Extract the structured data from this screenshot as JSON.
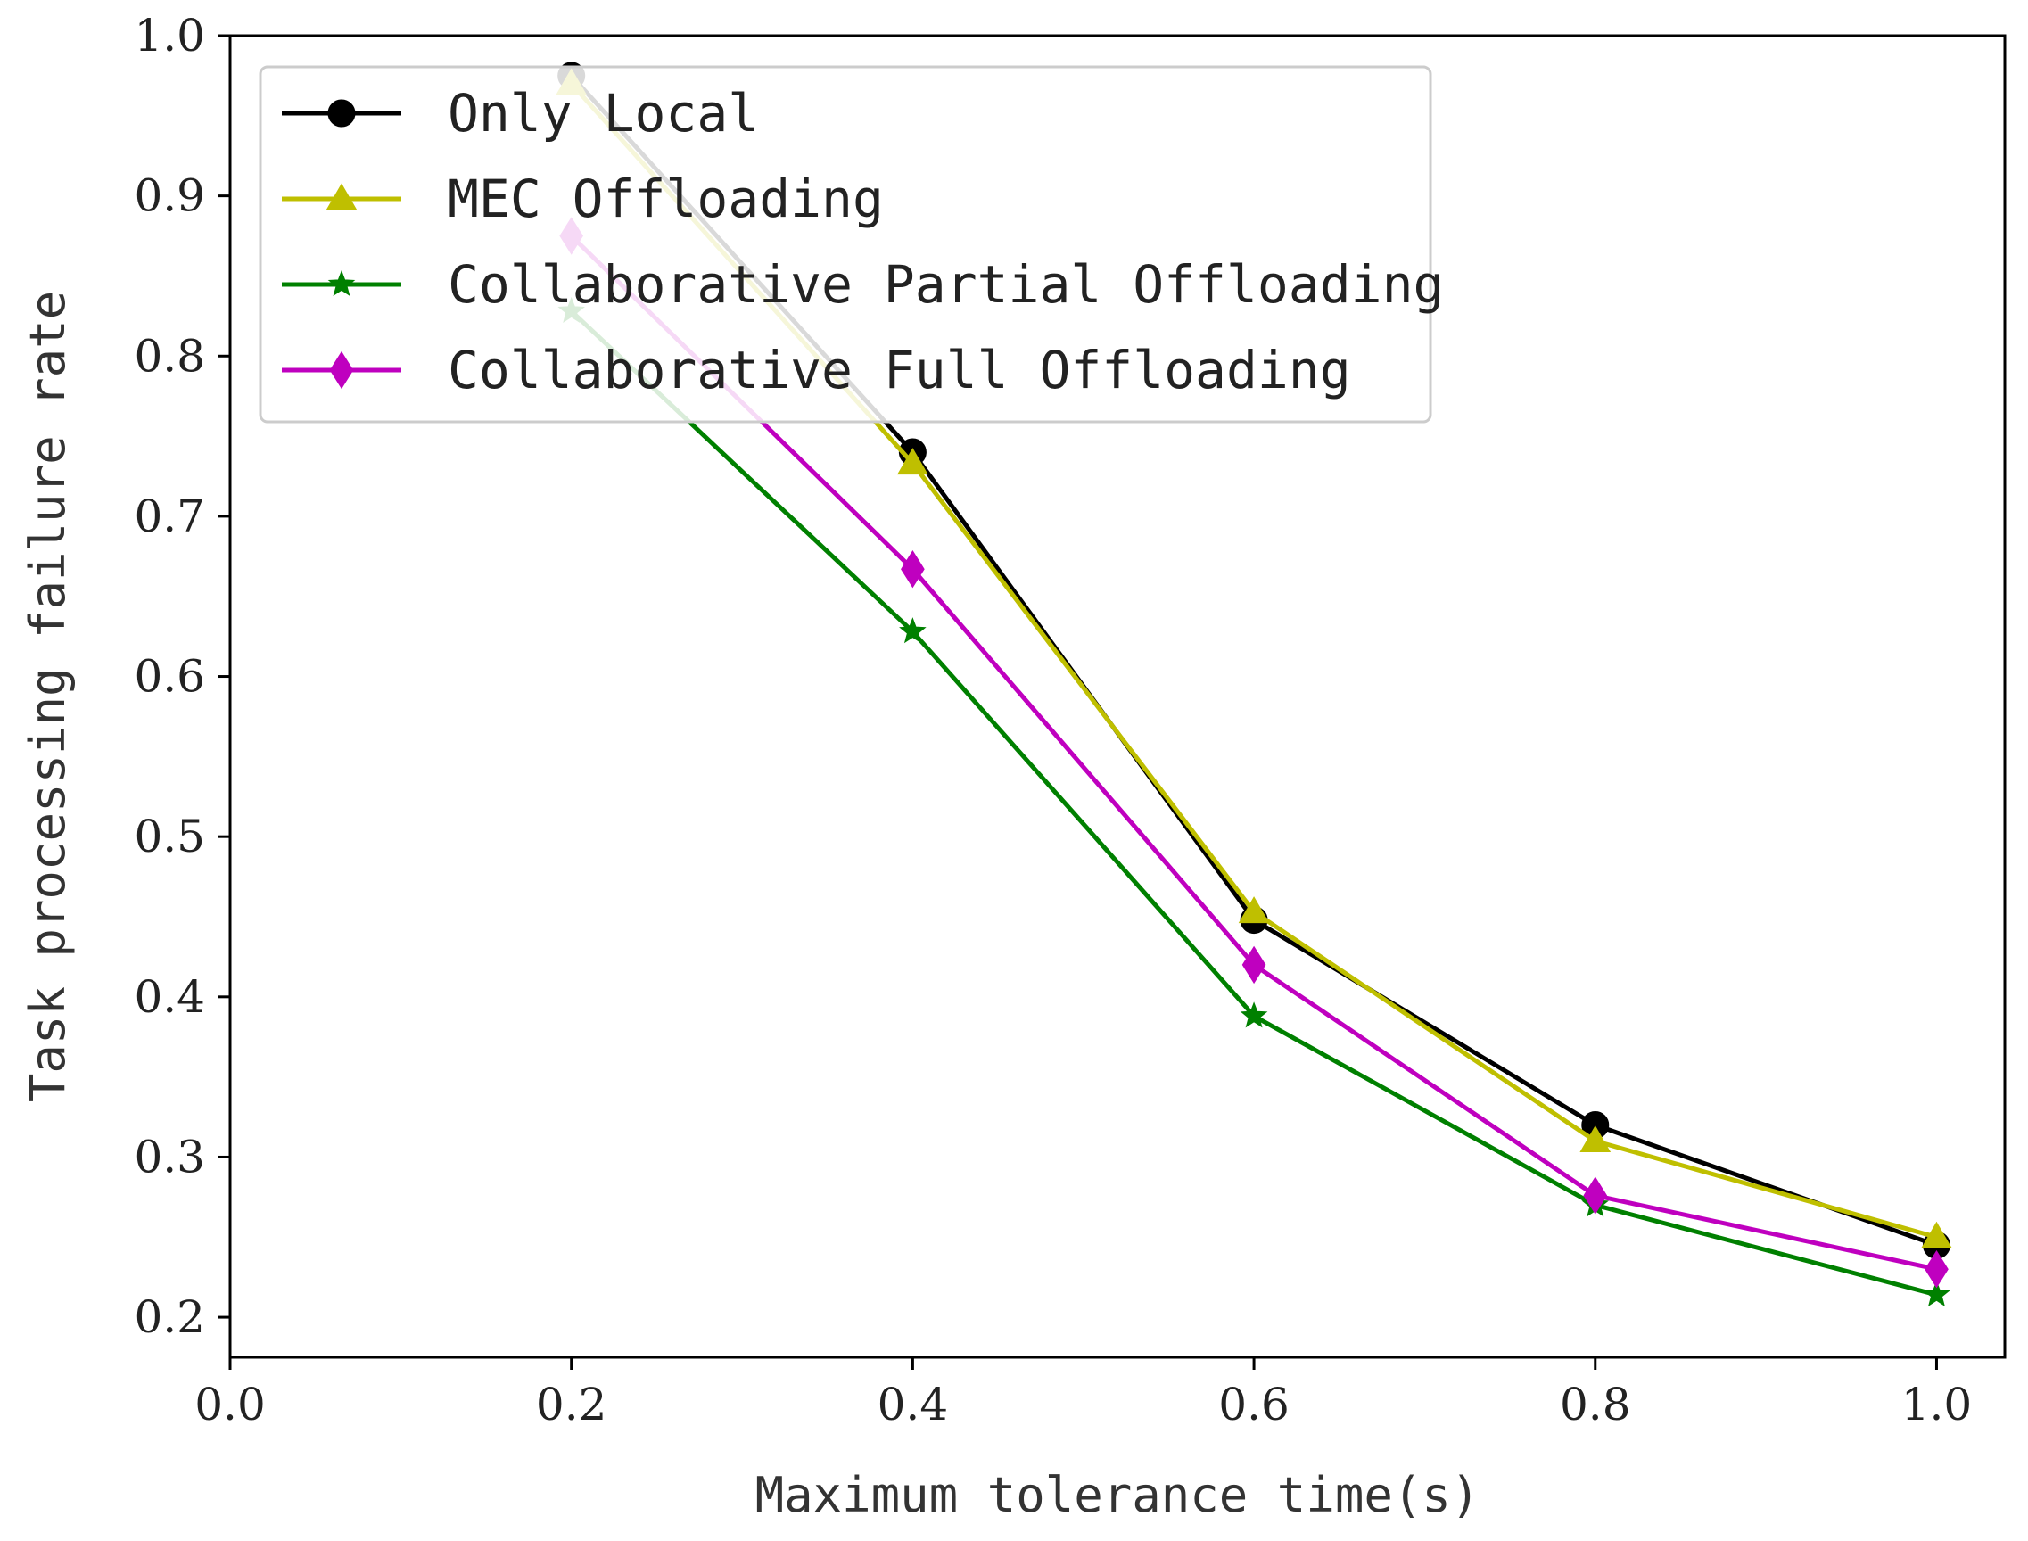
{
  "chart_data": {
    "type": "line",
    "title": "",
    "xlabel": "Maximum tolerance time(s)",
    "ylabel": "Task processing failure rate",
    "xlim": [
      0.0,
      1.04
    ],
    "ylim": [
      0.175,
      1.0
    ],
    "xticks": [
      0.0,
      0.2,
      0.4,
      0.6,
      0.8,
      1.0
    ],
    "xtick_labels": [
      "0.0",
      "0.2",
      "0.4",
      "0.6",
      "0.8",
      "1.0"
    ],
    "yticks": [
      0.2,
      0.3,
      0.4,
      0.5,
      0.6,
      0.7,
      0.8,
      0.9,
      1.0
    ],
    "ytick_labels": [
      "0.2",
      "0.3",
      "0.4",
      "0.5",
      "0.6",
      "0.7",
      "0.8",
      "0.9",
      "1.0"
    ],
    "grid": false,
    "legend_position": "top-left",
    "x": [
      0.2,
      0.4,
      0.6,
      0.8,
      1.0
    ],
    "series": [
      {
        "name": "Only Local",
        "color": "#000000",
        "marker": "circle",
        "values": [
          0.975,
          0.74,
          0.448,
          0.32,
          0.245
        ]
      },
      {
        "name": "MEC Offloading",
        "color": "#bfbf00",
        "marker": "triangle",
        "values": [
          0.97,
          0.733,
          0.453,
          0.31,
          0.25
        ]
      },
      {
        "name": "Collaborative Partial Offloading",
        "color": "#008000",
        "marker": "star",
        "values": [
          0.828,
          0.628,
          0.388,
          0.27,
          0.214
        ]
      },
      {
        "name": "Collaborative Full Offloading",
        "color": "#bf00bf",
        "marker": "diamond",
        "values": [
          0.875,
          0.667,
          0.42,
          0.276,
          0.23
        ]
      }
    ]
  }
}
